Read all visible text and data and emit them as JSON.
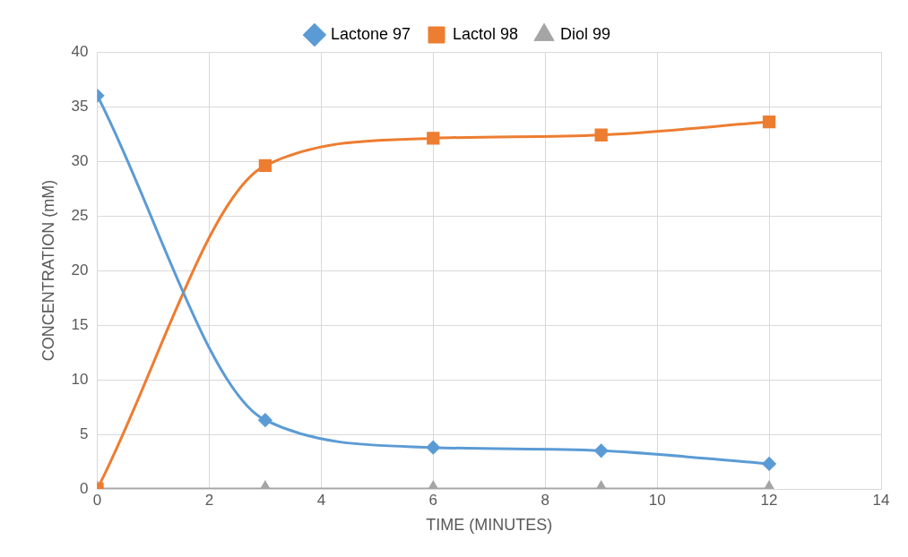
{
  "chart_data": {
    "type": "line",
    "xlabel": "TIME (MINUTES)",
    "ylabel": "CONCENTRATION (mM)",
    "x": [
      0,
      3,
      6,
      9,
      12
    ],
    "series": [
      {
        "name": "Lactone 97",
        "color": "#5b9bd5",
        "marker": "diamond",
        "values": [
          36,
          6.3,
          3.8,
          3.5,
          2.3
        ]
      },
      {
        "name": "Lactol 98",
        "color": "#ed7d31",
        "marker": "square",
        "values": [
          0,
          29.6,
          32.1,
          32.4,
          33.6
        ]
      },
      {
        "name": "Diol 99",
        "color": "#a5a5a5",
        "marker": "triangle",
        "values": [
          0,
          0,
          0,
          0,
          0
        ]
      }
    ],
    "xlim": [
      0,
      14
    ],
    "xticks": [
      0,
      2,
      4,
      6,
      8,
      10,
      12,
      14
    ],
    "ylim": [
      0,
      40
    ],
    "yticks": [
      0,
      5,
      10,
      15,
      20,
      25,
      30,
      35,
      40
    ],
    "grid": true,
    "legend": "top"
  }
}
